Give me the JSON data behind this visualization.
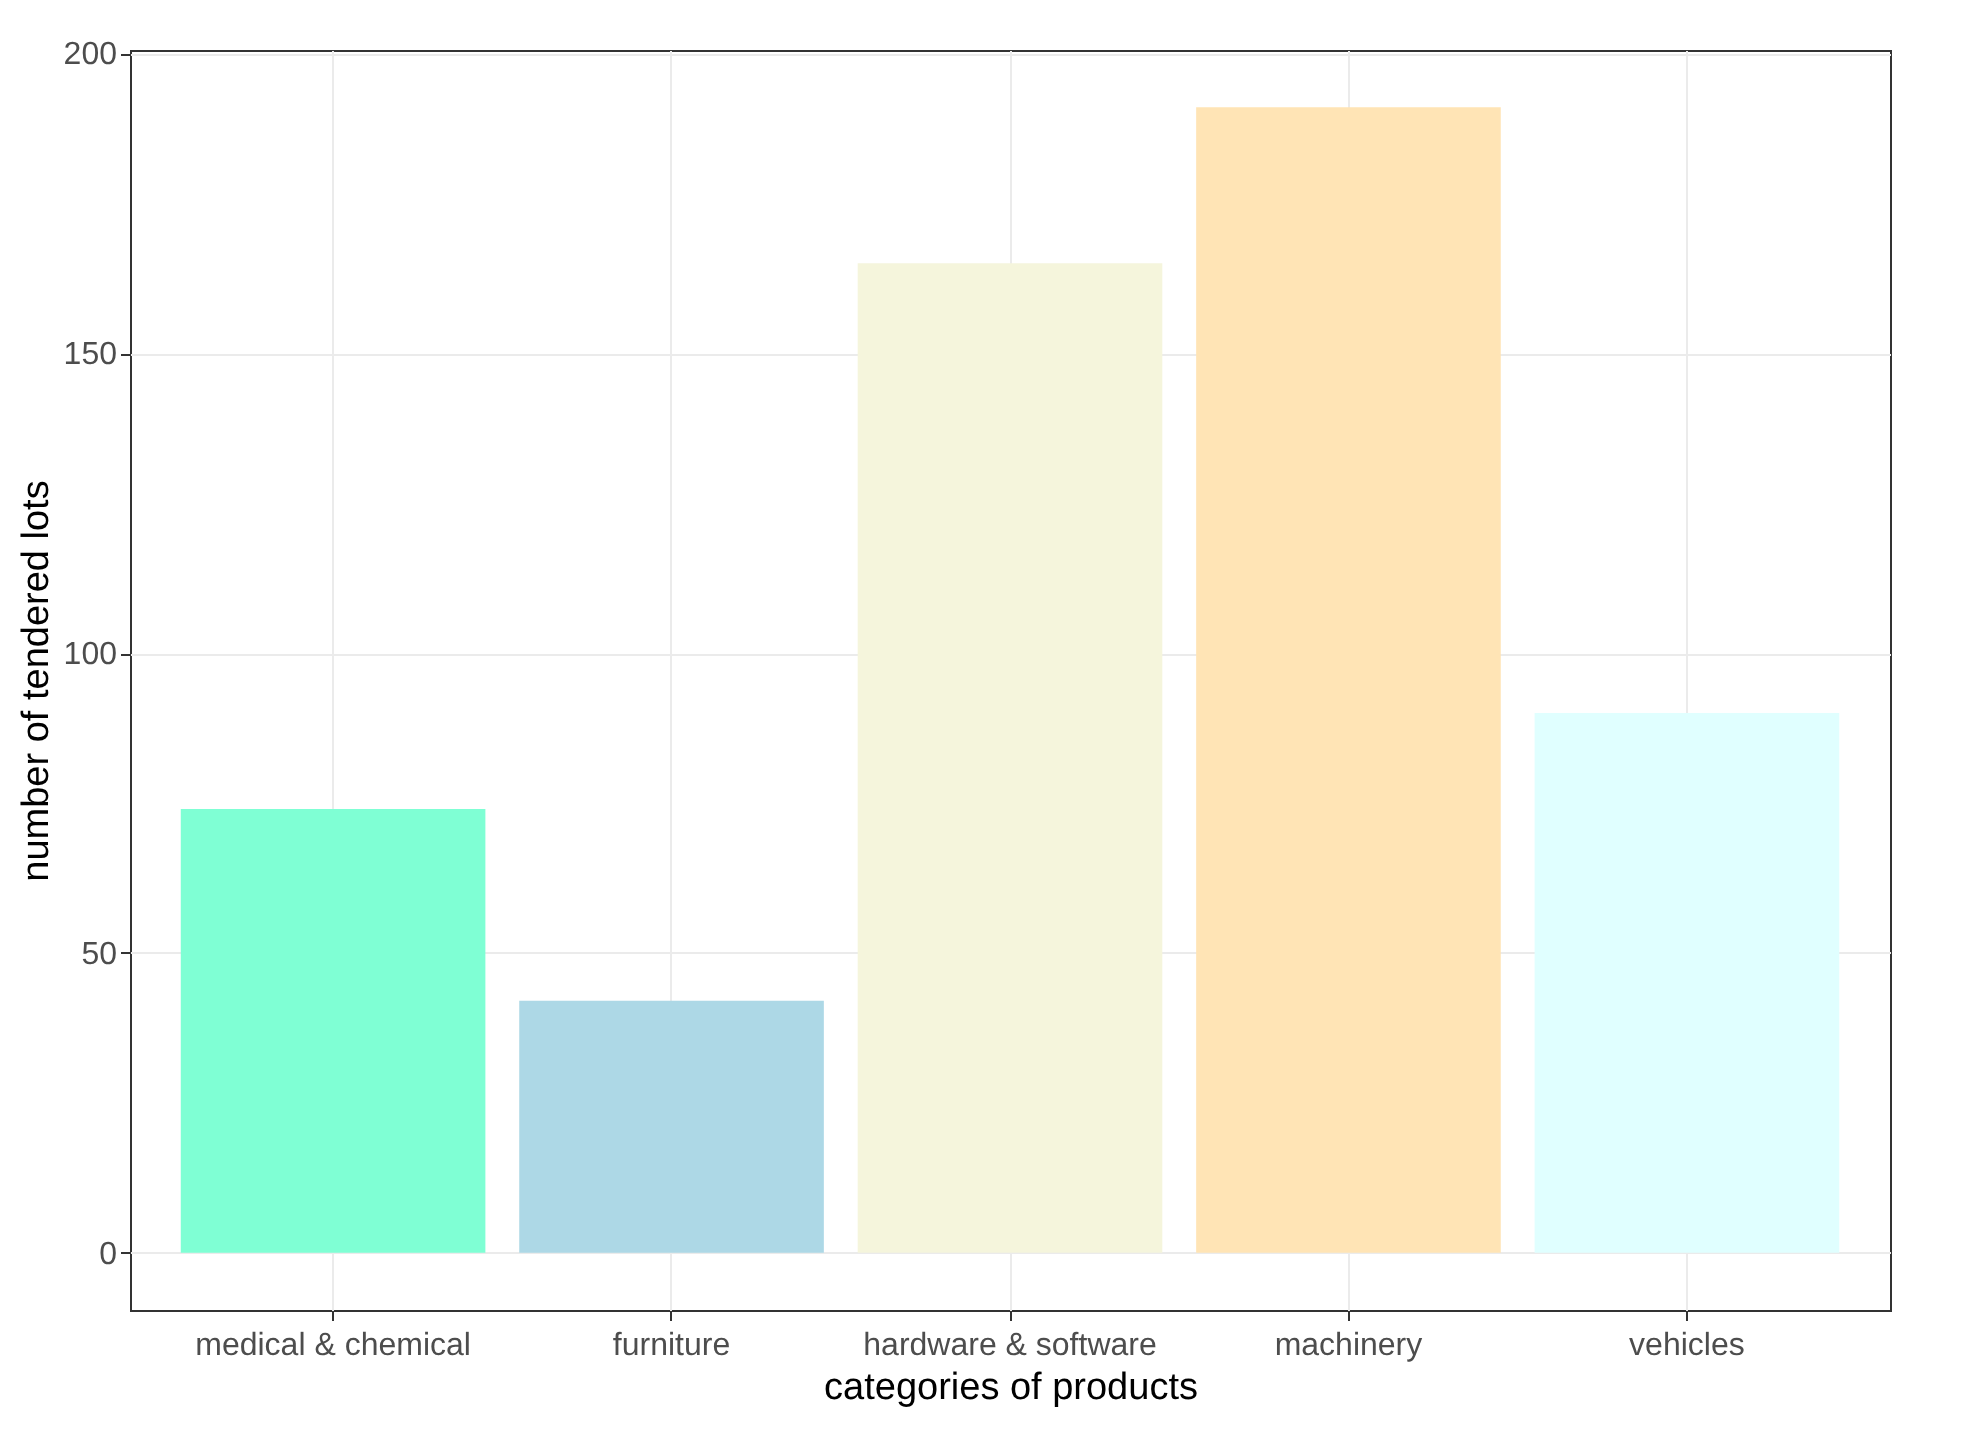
{
  "chart_data": {
    "type": "bar",
    "xlabel": "categories of products",
    "ylabel": "number of tendered lots",
    "categories": [
      "medical & chemical",
      "furniture",
      "hardware & software",
      "machinery",
      "vehicles"
    ],
    "values": [
      74,
      42,
      165,
      191,
      90
    ],
    "colors": [
      "#7fffd4",
      "#add8e6",
      "#f5f5dc",
      "#ffe4b5",
      "#e0ffff"
    ],
    "ylim": [
      -9.55,
      200.55
    ],
    "yticks": [
      0,
      50,
      100,
      150,
      200
    ],
    "grid": true
  }
}
